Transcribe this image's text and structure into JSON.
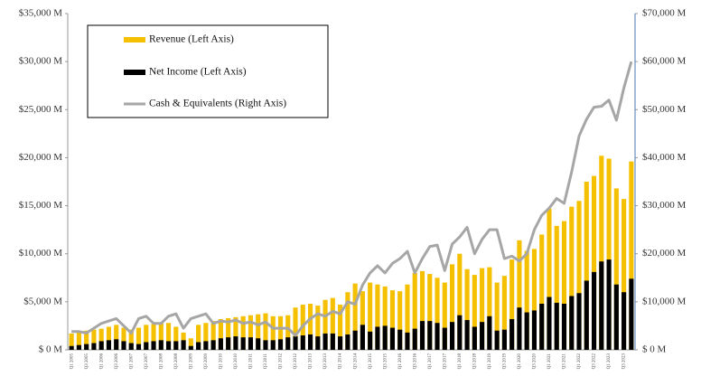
{
  "chart_data": {
    "type": "bar",
    "categories": [
      "Q1 2005",
      null,
      "Q3 2005",
      null,
      "Q1 2006",
      null,
      "Q3 2006",
      null,
      "Q1 2007",
      null,
      "Q3 2007",
      null,
      "Q1 2008",
      null,
      "Q3 2008",
      null,
      "Q1 2009",
      null,
      "Q3 2009",
      null,
      "Q1 2010",
      null,
      "Q3 2010",
      null,
      "Q1 2011",
      null,
      "Q3 2011",
      null,
      "Q1 2012",
      null,
      "Q3 2012",
      null,
      "Q1 2013",
      null,
      "Q3 2013",
      null,
      "Q1 2014",
      null,
      "Q3 2014",
      null,
      "Q1 2015",
      null,
      "Q3 2015",
      null,
      "Q1 2016",
      null,
      "Q3 2016",
      null,
      "Q1 2017",
      null,
      "Q3 2017",
      null,
      "Q1 2018",
      null,
      "Q3 2018",
      null,
      "Q1 2019",
      null,
      "Q3 2019",
      null,
      "Q1 2020",
      null,
      "Q3 2020",
      null,
      "Q1 2021",
      null,
      "Q3 2021",
      null,
      "Q1 2022",
      null,
      "Q3 2022",
      null,
      "Q1 2023",
      null,
      "Q3 2023",
      null
    ],
    "series": [
      {
        "name": "Revenue (Left Axis)",
        "type": "bar",
        "axis": "y",
        "color": "#f5c000",
        "values": [
          1700,
          1900,
          2000,
          2100,
          2200,
          2400,
          2600,
          2300,
          2100,
          2300,
          2600,
          2700,
          2800,
          2800,
          2400,
          1800,
          1200,
          2600,
          2800,
          3000,
          3200,
          3300,
          3400,
          3500,
          3600,
          3700,
          3800,
          3500,
          3500,
          3600,
          4400,
          4700,
          4800,
          4600,
          5200,
          5400,
          4700,
          6000,
          6900,
          6100,
          7000,
          6800,
          6600,
          6200,
          6100,
          6800,
          8000,
          8200,
          7900,
          7500,
          7000,
          8900,
          10000,
          8400,
          7800,
          8500,
          8600,
          7000,
          7700,
          9400,
          11400,
          10300,
          10500,
          12000,
          14700,
          12900,
          13400,
          14900,
          15500,
          17500,
          18100,
          20200,
          19900,
          16800,
          15700,
          19600
        ]
      },
      {
        "name": "Net Income (Left Axis)",
        "type": "bar",
        "axis": "y",
        "color": "#000000",
        "values": [
          400,
          500,
          600,
          700,
          900,
          1000,
          1100,
          900,
          700,
          600,
          800,
          900,
          1000,
          900,
          900,
          1000,
          400,
          800,
          900,
          1000,
          1200,
          1300,
          1400,
          1300,
          1300,
          1200,
          1000,
          1000,
          1100,
          1300,
          1400,
          1500,
          1600,
          1400,
          1700,
          1700,
          1400,
          1600,
          2000,
          2600,
          1900,
          2400,
          2500,
          2300,
          2100,
          1800,
          2200,
          3000,
          3000,
          2800,
          2300,
          2900,
          3600,
          3100,
          2400,
          2900,
          3500,
          2000,
          2100,
          3200,
          4400,
          3900,
          4100,
          4800,
          5500,
          4900,
          4800,
          5600,
          5900,
          7200,
          8100,
          9200,
          9400,
          6800,
          6000,
          7400
        ]
      },
      {
        "name": "Cash & Equivalents (Right Axis)",
        "type": "line",
        "axis": "y2",
        "color": "#a6a6a6",
        "values": [
          3800,
          3800,
          3500,
          4500,
          5500,
          6000,
          6500,
          5000,
          3500,
          6500,
          7000,
          5500,
          5500,
          7000,
          7500,
          4500,
          6500,
          7000,
          7500,
          5500,
          6000,
          5800,
          6200,
          5500,
          5800,
          5200,
          5800,
          4500,
          4500,
          4500,
          3000,
          5000,
          6500,
          7500,
          7000,
          8000,
          7500,
          10000,
          9500,
          13500,
          16000,
          17500,
          16000,
          18000,
          19000,
          20500,
          16000,
          19000,
          21500,
          21800,
          16500,
          22000,
          23500,
          25500,
          20000,
          23000,
          25000,
          25000,
          19000,
          19500,
          18500,
          20000,
          25000,
          28000,
          29500,
          31500,
          30500,
          37000,
          44500,
          48000,
          50500,
          50700,
          52000,
          47800,
          54500,
          60000
        ]
      }
    ],
    "ylim": [
      0,
      35000
    ],
    "yticks": [
      {
        "value": 0,
        "label": "$ 0 M"
      },
      {
        "value": 5000,
        "label": "$5,000 M"
      },
      {
        "value": 10000,
        "label": "$10,000 M"
      },
      {
        "value": 15000,
        "label": "$15,000 M"
      },
      {
        "value": 20000,
        "label": "$20,000 M"
      },
      {
        "value": 25000,
        "label": "$25,000 M"
      },
      {
        "value": 30000,
        "label": "$30,000 M"
      },
      {
        "value": 35000,
        "label": "$35,000 M"
      }
    ],
    "y2lim": [
      0,
      70000
    ],
    "y2ticks": [
      {
        "value": 0,
        "label": "$ 0 M"
      },
      {
        "value": 10000,
        "label": "$10,000 M"
      },
      {
        "value": 20000,
        "label": "$20,000 M"
      },
      {
        "value": 30000,
        "label": "$30,000 M"
      },
      {
        "value": 40000,
        "label": "$40,000 M"
      },
      {
        "value": 50000,
        "label": "$50,000 M"
      },
      {
        "value": 60000,
        "label": "$60,000 M"
      },
      {
        "value": 70000,
        "label": "$70,000 M"
      }
    ],
    "legend": "top-left"
  }
}
